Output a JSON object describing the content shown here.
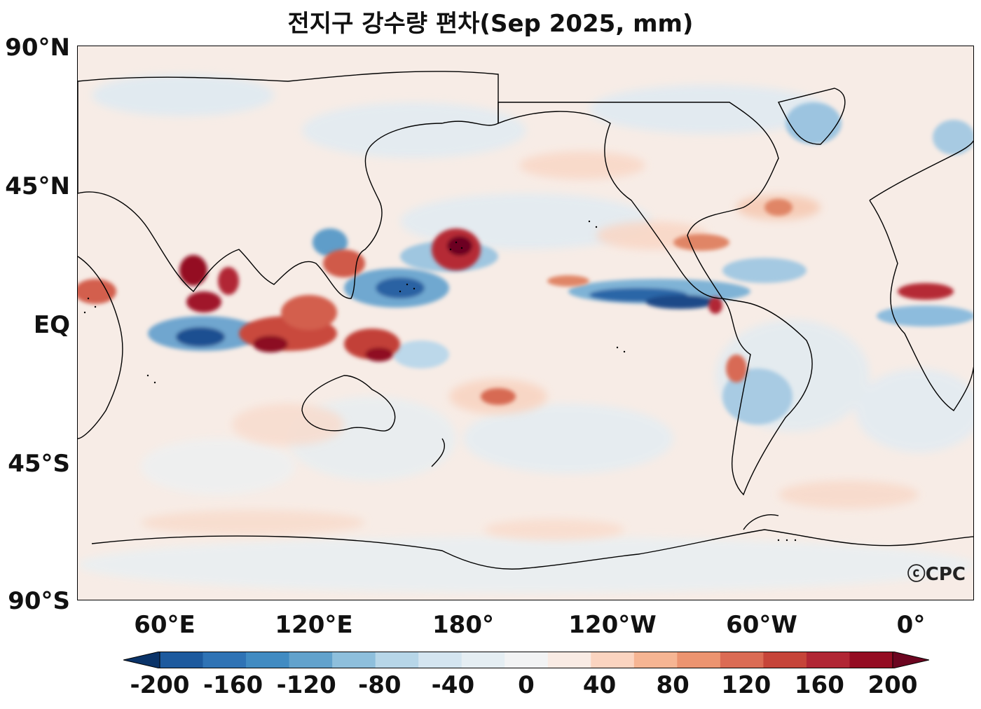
{
  "title": "전지구 강수량 편차(Sep 2025, mm)",
  "credit": "ⓒCPC",
  "lat_labels": [
    "90°N",
    "45°N",
    "EQ",
    "45°S",
    "90°S"
  ],
  "lon_labels": [
    "60°E",
    "120°E",
    "180°",
    "120°W",
    "60°W",
    "0°"
  ],
  "colorbar": {
    "tick_labels": [
      "-200",
      "-160",
      "-120",
      "-80",
      "-40",
      "0",
      "40",
      "80",
      "120",
      "160",
      "200"
    ],
    "colors": [
      "#0a3368",
      "#1d5a9e",
      "#2f73b5",
      "#418bc2",
      "#62a2cc",
      "#8ebfdc",
      "#b7d6e8",
      "#d4e5f0",
      "#e5eef3",
      "#f2f3f4",
      "#f9ebe4",
      "#fbd4c0",
      "#f6b593",
      "#ec9470",
      "#db6b54",
      "#c64439",
      "#b12634",
      "#940c22",
      "#6c0520"
    ]
  },
  "map": {
    "land_shapes": "coastline-outline",
    "colors": {
      "background": "#f7ece6",
      "light_blue": "#dbe9f2",
      "blue": "#6aa6cf",
      "dark_blue": "#1a4f8f",
      "light_red": "#f8d1bd",
      "red": "#d0574a",
      "dark_red": "#8c0d22"
    }
  }
}
